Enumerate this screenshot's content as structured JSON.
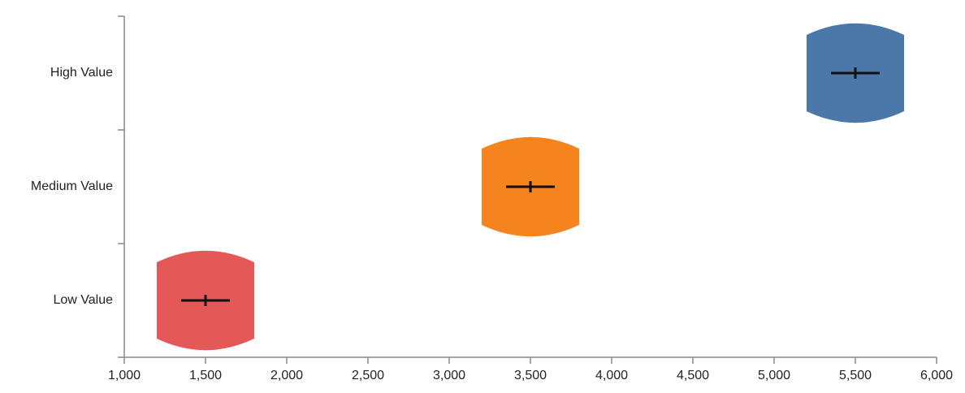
{
  "chart_data": {
    "type": "violin",
    "title": "",
    "xlabel": "",
    "ylabel": "",
    "xlim": [
      1000,
      6000
    ],
    "x_ticks": [
      1000,
      1500,
      2000,
      2500,
      3000,
      3500,
      4000,
      4500,
      5000,
      5500,
      6000
    ],
    "x_tick_labels": [
      "1,000",
      "1,500",
      "2,000",
      "2,500",
      "3,000",
      "3,500",
      "4,000",
      "4,500",
      "5,000",
      "5,500",
      "6,000"
    ],
    "categories": [
      "High Value",
      "Medium Value",
      "Low Value"
    ],
    "series": [
      {
        "category": "High Value",
        "median": 5500,
        "min": 5200,
        "max": 5800,
        "iqr": [
          5350,
          5650
        ],
        "color": "#4b77a9"
      },
      {
        "category": "Medium Value",
        "median": 3500,
        "min": 3200,
        "max": 3800,
        "iqr": [
          3350,
          3650
        ],
        "color": "#f5841f"
      },
      {
        "category": "Low Value",
        "median": 1500,
        "min": 1200,
        "max": 1800,
        "iqr": [
          1350,
          1650
        ],
        "color": "#e55858"
      }
    ],
    "grid": false,
    "legend": "none"
  }
}
